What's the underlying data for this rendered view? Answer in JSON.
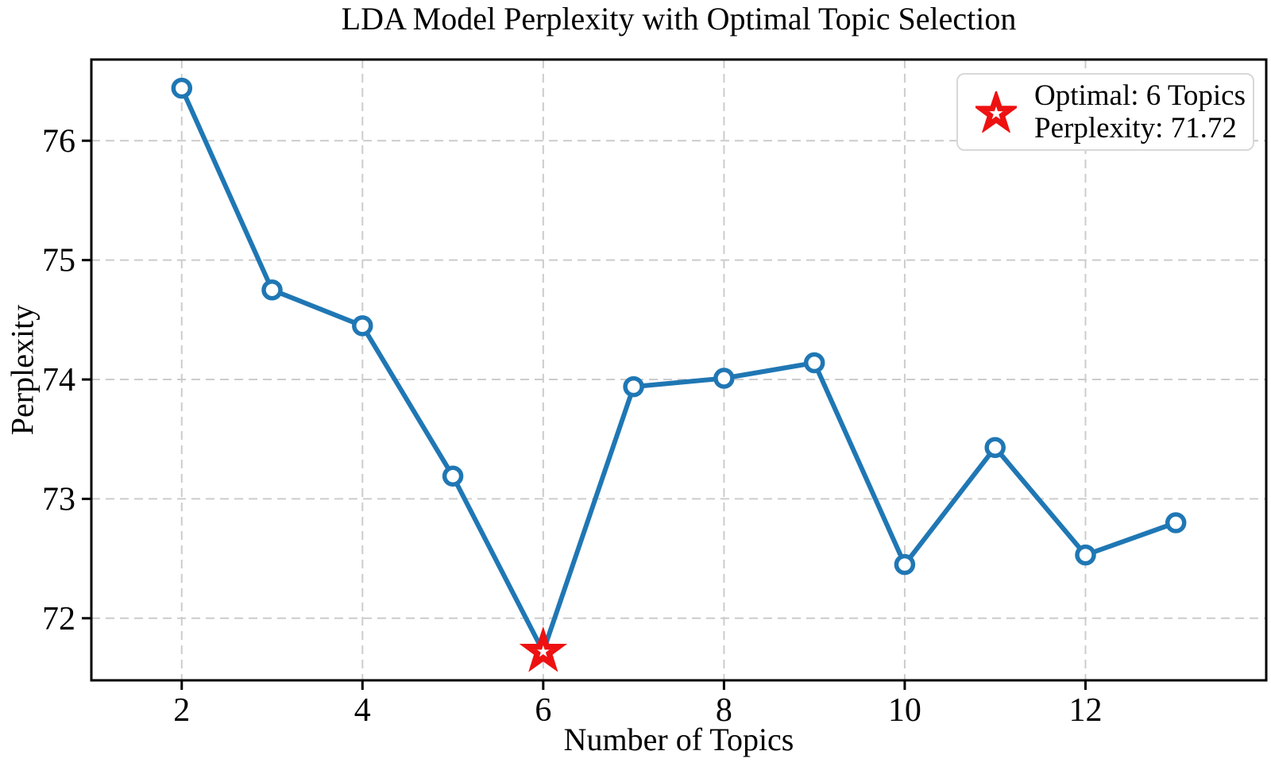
{
  "chart_data": {
    "type": "line",
    "title": "LDA Model Perplexity with Optimal Topic Selection",
    "xlabel": "Number of Topics",
    "ylabel": "Perplexity",
    "x": [
      2,
      3,
      4,
      5,
      6,
      7,
      8,
      9,
      10,
      11,
      12,
      13
    ],
    "y": [
      76.44,
      74.75,
      74.45,
      73.19,
      71.72,
      73.94,
      74.01,
      74.14,
      72.45,
      73.43,
      72.53,
      72.8
    ],
    "xlim": [
      1,
      14
    ],
    "ylim": [
      71.48,
      76.68
    ],
    "xticks": [
      2,
      4,
      6,
      8,
      10,
      12
    ],
    "yticks": [
      72,
      73,
      74,
      75,
      76
    ],
    "grid": true,
    "grid_style": "dashed",
    "line_color": "#1f77b4",
    "marker": "open-circle",
    "marker_color": "#1f77b4",
    "optimal_point": {
      "x": 6,
      "y": 71.72,
      "marker": "star",
      "color": "#ee1111"
    },
    "legend": {
      "position": "upper-right",
      "icon": "star-icon",
      "icon_color": "#ee1111",
      "lines": [
        "Optimal: 6 Topics",
        "Perplexity: 71.72"
      ]
    }
  }
}
